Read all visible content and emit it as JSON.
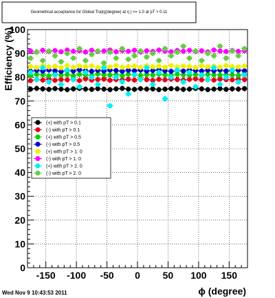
{
  "chart_data": {
    "type": "scatter",
    "title": "Geometrical acceptance for Global Tra|η|(degree) at η | <= 1.0 at pT > 0.11",
    "xlabel": "ϕ (degree)",
    "ylabel": "Efficiency (%)",
    "xlim": [
      -180,
      180
    ],
    "ylim": [
      0,
      100
    ],
    "x_ticks": [
      "-150",
      "-100",
      "-50",
      "0",
      "50",
      "100",
      "150"
    ],
    "x_tick_values": [
      -150,
      -100,
      -50,
      0,
      50,
      100,
      150
    ],
    "y_ticks": [
      "0",
      "10",
      "20",
      "30",
      "40",
      "50",
      "60",
      "70",
      "80",
      "90",
      "100"
    ],
    "y_tick_values": [
      0,
      10,
      20,
      30,
      40,
      50,
      60,
      70,
      80,
      90,
      100
    ],
    "grid": true,
    "legend_placement": "middle-left",
    "x": [
      -175,
      -165,
      -155,
      -145,
      -135,
      -125,
      -115,
      -105,
      -95,
      -85,
      -75,
      -65,
      -55,
      -45,
      -35,
      -25,
      -15,
      -5,
      5,
      15,
      25,
      35,
      45,
      55,
      65,
      75,
      85,
      95,
      105,
      115,
      125,
      135,
      145,
      155,
      165,
      175
    ],
    "series": [
      {
        "name": "(+) with pT > 0.1",
        "color": "#000000",
        "values": [
          75,
          75.3,
          75.1,
          74.9,
          75.2,
          75,
          74.8,
          75.1,
          75.3,
          75,
          74.9,
          75.2,
          75,
          74.8,
          75.1,
          75.3,
          75,
          74.9,
          75.2,
          75,
          75.1,
          74.8,
          75,
          75.2,
          75.1,
          74.9,
          75,
          75.3,
          75.1,
          74.8,
          75,
          75.2,
          74.9,
          75.1,
          75,
          75.2
        ]
      },
      {
        "name": "(-) with pT > 0.1",
        "color": "#e8001c",
        "values": [
          78.6,
          79,
          78.8,
          79.2,
          78.7,
          79,
          78.9,
          79.1,
          78.6,
          79.3,
          78.8,
          79,
          79.2,
          78.7,
          79,
          78.9,
          79.1,
          78.8,
          79.2,
          79,
          78.7,
          79.1,
          78.9,
          79.2,
          79,
          78.8,
          79.1,
          79.3,
          78.9,
          79,
          78.8,
          79.2,
          79,
          78.9,
          79.1,
          79
        ]
      },
      {
        "name": "(+) with pT > 0.5",
        "color": "#00d400",
        "values": [
          80.8,
          81.2,
          81,
          80.6,
          81.3,
          80.9,
          81.1,
          80.7,
          81.2,
          81,
          80.8,
          81.3,
          81,
          80.9,
          81.1,
          80.7,
          81.2,
          81,
          80.8,
          81.1,
          80.9,
          81.3,
          81,
          80.8,
          81.2,
          81,
          80.9,
          81.1,
          80.8,
          81.2,
          81,
          80.9,
          81.1,
          81,
          80.8,
          81.2
        ]
      },
      {
        "name": "(-) with pT > 0.5",
        "color": "#0000d0",
        "values": [
          82.5,
          82.9,
          82.6,
          83,
          82.7,
          82.4,
          82.9,
          82.6,
          83.1,
          82.7,
          82.5,
          82.9,
          82.6,
          83,
          82.8,
          82.5,
          82.9,
          82.7,
          83,
          82.6,
          82.8,
          83.1,
          82.7,
          82.5,
          82.9,
          82.6,
          83,
          82.8,
          82.6,
          82.9,
          82.7,
          83,
          82.6,
          82.8,
          82.9,
          82.7
        ]
      },
      {
        "name": "(+) with pT > 1. 0",
        "color": "#f0f000",
        "values": [
          84.5,
          84.1,
          84.8,
          84.3,
          84.6,
          84,
          84.9,
          84.2,
          84.7,
          84.4,
          84.8,
          84.1,
          84.6,
          84.3,
          84.9,
          84.2,
          84.5,
          84.7,
          84.1,
          84.8,
          84.4,
          84.6,
          84.2,
          84.9,
          84.3,
          84.7,
          84.5,
          84.1,
          84.8,
          84.4,
          84.6,
          84.2,
          84.9,
          84.5,
          84.3,
          84.7
        ]
      },
      {
        "name": "(-) with pT > 1. 0",
        "color": "#ff00ff",
        "values": [
          91,
          90.6,
          91.3,
          90.8,
          91.2,
          90.7,
          91.4,
          90.9,
          91.1,
          90.6,
          91.3,
          90.8,
          91,
          91.4,
          90.7,
          91.2,
          90.9,
          91.3,
          90.6,
          91.1,
          90.8,
          91.4,
          91,
          90.7,
          91.2,
          90.9,
          91.3,
          90.8,
          91.1,
          90.6,
          91.4,
          91,
          90.8,
          91.2,
          90.9,
          91.1
        ]
      },
      {
        "name": "(+) with pT > 2. 0",
        "color": "#00f0f0",
        "values": [
          82,
          79,
          84,
          78,
          81,
          77,
          83,
          79,
          76,
          82,
          80,
          77,
          84,
          68,
          80,
          78,
          73,
          81,
          79,
          84,
          77,
          82,
          71,
          80,
          83,
          78,
          82,
          76,
          81,
          79,
          84,
          77,
          80,
          83,
          78,
          81
        ]
      },
      {
        "name": "(-) with pT > 2. 0",
        "color": "#66cc44",
        "values": [
          88,
          90.5,
          87,
          91,
          89,
          86.5,
          90,
          88,
          92,
          87,
          89.5,
          91,
          86,
          90.5,
          88,
          92,
          87.5,
          89,
          91,
          88.5,
          90,
          87,
          92,
          89,
          90.5,
          93,
          88,
          91,
          87,
          90,
          89,
          93,
          88,
          91,
          89,
          92
        ]
      }
    ]
  },
  "footer": {
    "timestamp": "Wed Nov  9 10:43:53 2011"
  }
}
